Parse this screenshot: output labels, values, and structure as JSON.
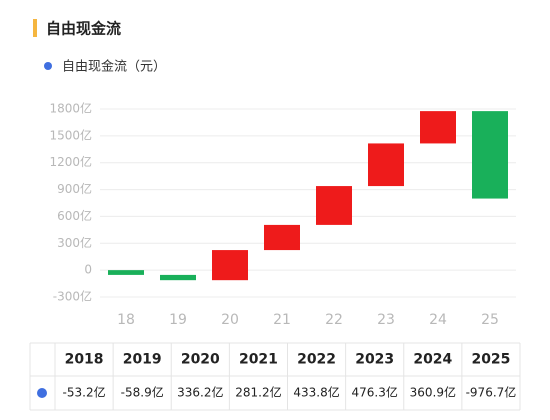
{
  "chart_data": {
    "type": "waterfall",
    "title": "自由现金流",
    "categories": [
      "18",
      "19",
      "20",
      "21",
      "22",
      "23",
      "24",
      "25"
    ],
    "series": [
      {
        "name": "自由现金流（元）",
        "color": "#3f6fe0",
        "values": [
          -53.2,
          -58.9,
          336.2,
          281.2,
          433.8,
          476.3,
          360.9,
          -976.7
        ],
        "value_labels": [
          "-53.2亿",
          "-58.9亿",
          "336.2亿",
          "281.2亿",
          "433.8亿",
          "476.3亿",
          "360.9亿",
          "-976.7亿"
        ]
      }
    ],
    "increase_color": "#ee1b1b",
    "decrease_color": "#19b05a",
    "ylim": [
      -300,
      1800
    ],
    "yticks": [
      {
        "value": -300,
        "label": "-300亿"
      },
      0,
      {
        "value": 300,
        "label": "300亿"
      },
      {
        "value": 600,
        "label": "600亿"
      },
      {
        "value": 900,
        "label": "900亿"
      },
      {
        "value": 1200,
        "label": "1200亿"
      },
      {
        "value": 1500,
        "label": "1500亿"
      },
      {
        "value": 1800,
        "label": "1800亿"
      }
    ],
    "grid": true
  },
  "table": {
    "columns": [
      "2018",
      "2019",
      "2020",
      "2021",
      "2022",
      "2023",
      "2024",
      "2025"
    ]
  }
}
